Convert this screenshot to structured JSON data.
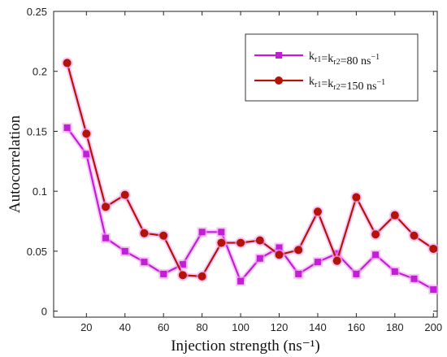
{
  "chart_data": {
    "type": "line",
    "title": "",
    "xlabel": "Injection strength (ns⁻¹)",
    "ylabel": "Autocorrelation",
    "xlim": [
      3,
      202
    ],
    "ylim": [
      -0.005,
      0.25
    ],
    "xticks": [
      20,
      40,
      60,
      80,
      100,
      120,
      140,
      160,
      180,
      200
    ],
    "yticks": [
      0,
      0.05,
      0.1,
      0.15,
      0.2,
      0.25
    ],
    "ytick_labels": [
      "0",
      "0.05",
      "0.1",
      "0.15",
      "0.2",
      "0.25"
    ],
    "x": [
      10,
      20,
      30,
      40,
      50,
      60,
      70,
      80,
      90,
      100,
      110,
      120,
      130,
      140,
      150,
      160,
      170,
      180,
      190,
      200
    ],
    "grid": false,
    "legend_position": "top-right",
    "series": [
      {
        "name": "kᵣ₁=kᵣ₂=80 ns⁻¹",
        "marker": "square",
        "color": "#c11fd6",
        "glow": "#f3a0f3",
        "values": [
          0.153,
          0.131,
          0.061,
          0.05,
          0.041,
          0.031,
          0.039,
          0.066,
          0.066,
          0.025,
          0.044,
          0.053,
          0.031,
          0.041,
          0.048,
          0.031,
          0.047,
          0.033,
          0.027,
          0.018
        ]
      },
      {
        "name": "kᵣ₁=kᵣ₂=150 ns⁻¹",
        "marker": "circle",
        "color": "#b31407",
        "glow": "#f3a0f3",
        "values": [
          0.207,
          0.148,
          0.087,
          0.097,
          0.065,
          0.063,
          0.03,
          0.029,
          0.057,
          0.057,
          0.059,
          0.047,
          0.051,
          0.083,
          0.042,
          0.095,
          0.064,
          0.08,
          0.063,
          0.052
        ]
      }
    ],
    "legend_labels": [
      {
        "k": "k",
        "sub1": "r1",
        "eq": "=k",
        "sub2": "r2",
        "rest": "=80 ns",
        "sup": "−1"
      },
      {
        "k": "k",
        "sub1": "r1",
        "eq": "=k",
        "sub2": "r2",
        "rest": "=150 ns",
        "sup": "−1"
      }
    ]
  }
}
